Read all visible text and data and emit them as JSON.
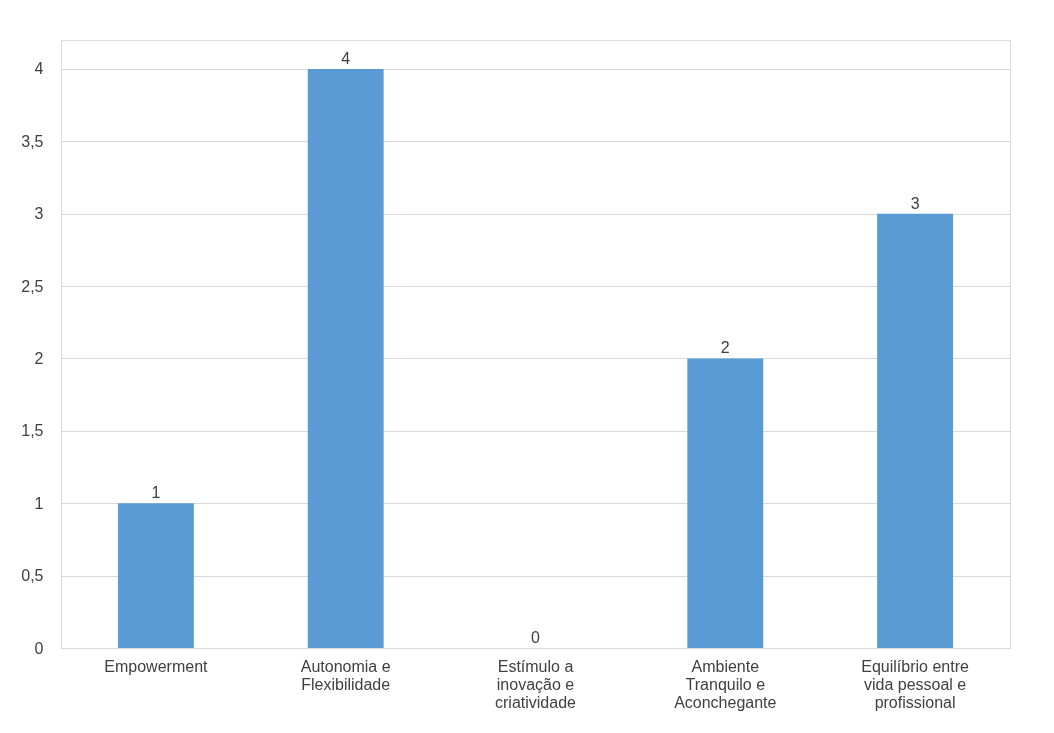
{
  "chart_data": {
    "type": "bar",
    "categories": [
      "Empowerment",
      "Autonomia e Flexibilidade",
      "Estímulo a inovação e criatividade",
      "Ambiente Tranquilo e Aconchegante",
      "Equilíbrio entre vida pessoal e profissional"
    ],
    "values": [
      1,
      4,
      0,
      2,
      3
    ],
    "color": "#5b9bd5",
    "ylim": [
      0,
      4.2
    ],
    "yticks": [
      0,
      {
        "value": 0.5,
        "label": "0,5"
      },
      1,
      {
        "value": 1.5,
        "label": "1,5"
      },
      2,
      {
        "value": 2.5,
        "label": "2,5"
      },
      3,
      {
        "value": 3.5,
        "label": "3,5"
      },
      4
    ],
    "grid": "y",
    "data_labels": true
  }
}
